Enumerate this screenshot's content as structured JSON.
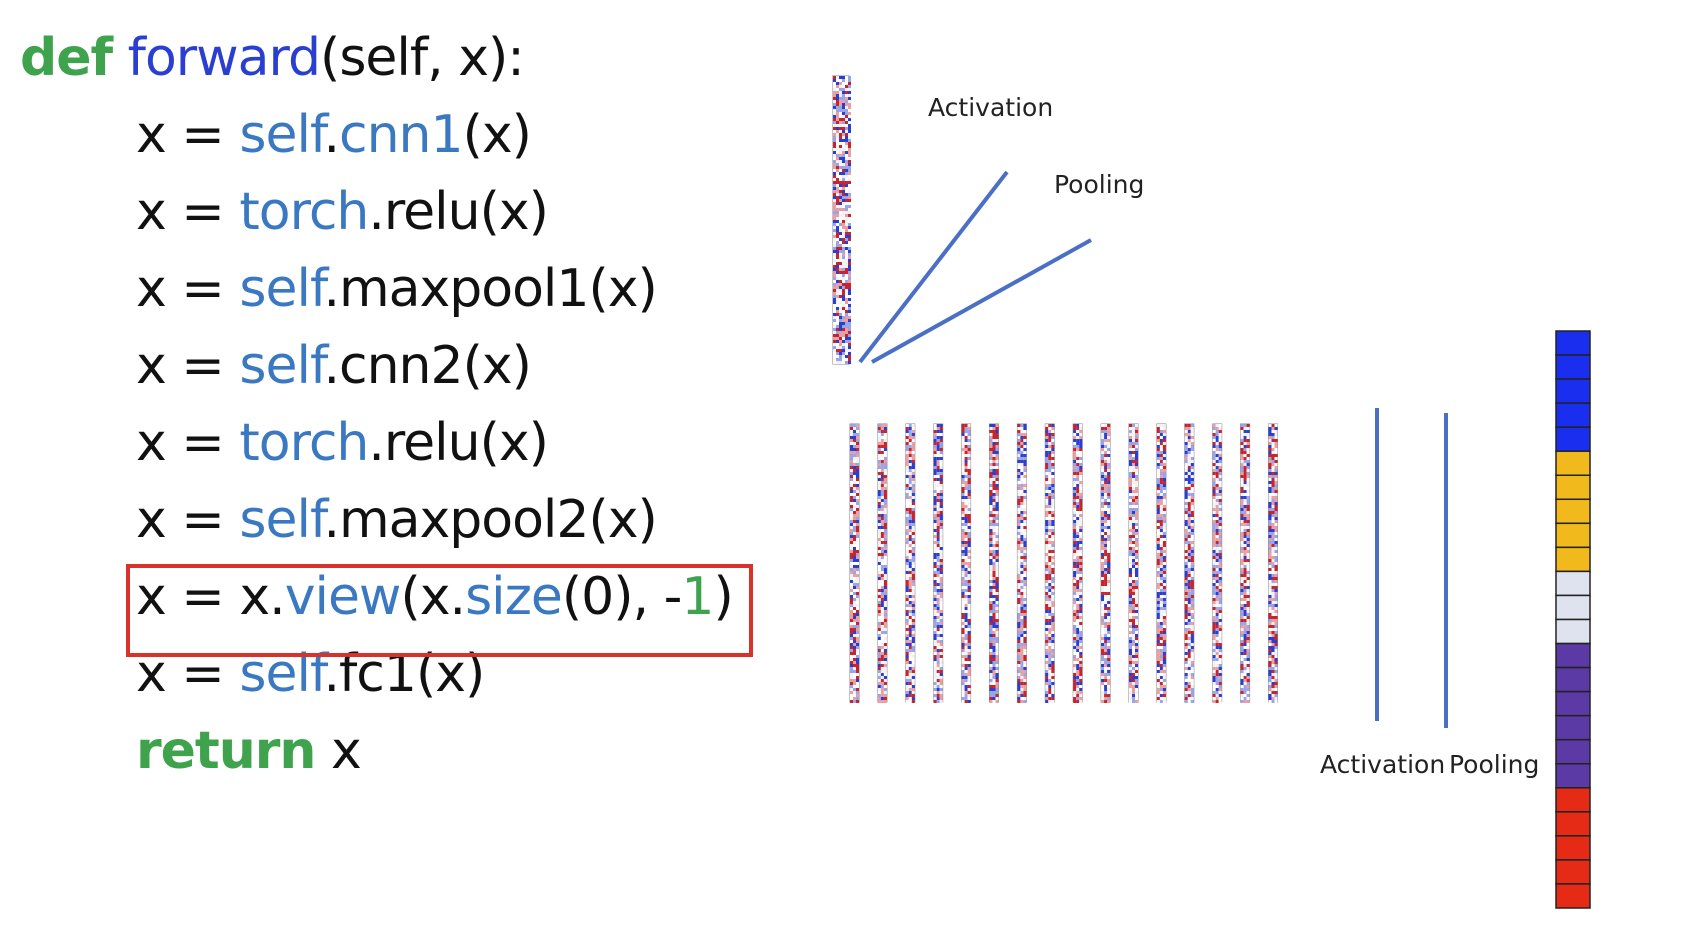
{
  "code": {
    "lines": [
      [
        "def",
        "forward",
        "(self, x):"
      ],
      [
        "x = ",
        "self",
        ".",
        "cnn1",
        "(x)"
      ],
      [
        "x = ",
        "torch",
        ".relu(x)"
      ],
      [
        "x = ",
        "self",
        ".maxpool1(x)"
      ],
      [
        "x = ",
        "self",
        ".cnn2(x)"
      ],
      [
        "x = ",
        "torch",
        ".relu(x)"
      ],
      [
        "x = ",
        "self",
        ".maxpool2(x)"
      ],
      [
        "x = x.",
        "view",
        "(x.",
        "size",
        "(0), -",
        "1",
        ")"
      ],
      [
        "x = ",
        "self",
        ".fc1(x)"
      ],
      [
        "return",
        " x"
      ]
    ]
  },
  "diagram": {
    "top_labels": [
      "Activation",
      "Pooling"
    ],
    "bottom_labels": [
      "Activation",
      "Pooling"
    ]
  }
}
